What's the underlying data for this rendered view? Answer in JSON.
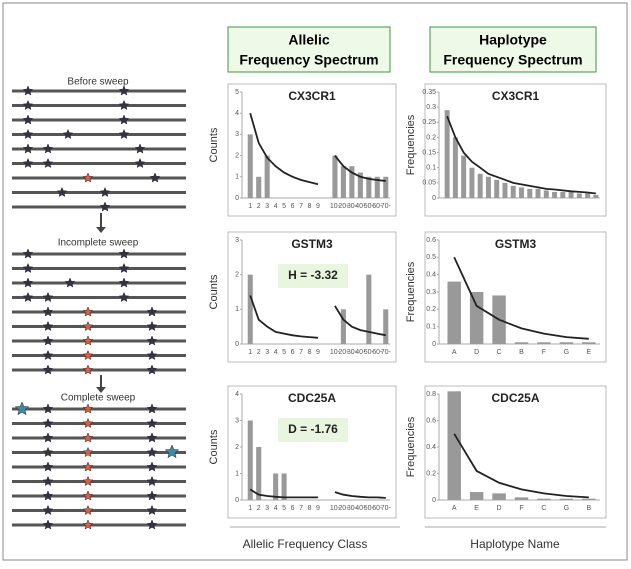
{
  "panel_headers": [
    [
      "Allelic",
      "Frequency Spectrum"
    ],
    [
      "Haplotype",
      "Frequency Spectrum"
    ]
  ],
  "diagram": {
    "labels": [
      "Before sweep",
      "Incomplete sweep",
      "Complete sweep"
    ]
  },
  "x_axis_titles": [
    "Allelic Frequency Class",
    "Haplotype Name"
  ],
  "chart_data": [
    {
      "type": "bar",
      "title": "CX3CR1",
      "ylabel": "Counts",
      "categories": [
        "1",
        "2",
        "3",
        "4",
        "5",
        "6",
        "7",
        "8",
        "9",
        null,
        "10-",
        "20-",
        "30-",
        "40-",
        "50-",
        "60-",
        "70-"
      ],
      "values": [
        3,
        1,
        2,
        0,
        0,
        0,
        0,
        0,
        0,
        null,
        2,
        1.5,
        1.5,
        1.2,
        1,
        1,
        1
      ],
      "line": [
        4,
        2.6,
        1.9,
        1.5,
        1.2,
        1,
        0.85,
        0.75,
        0.65,
        null,
        2,
        1.5,
        1.2,
        1,
        0.9,
        0.85,
        0.8
      ],
      "color": "#999999",
      "line_color": "#222222",
      "ylim": [
        0,
        5
      ],
      "yticks": [
        0,
        1,
        2,
        3,
        4,
        5
      ]
    },
    {
      "type": "bar",
      "title": "GSTM3",
      "ylabel": "Counts",
      "annotation": "H = -3.32",
      "categories": [
        "1",
        "2",
        "3",
        "4",
        "5",
        "6",
        "7",
        "8",
        "9",
        null,
        "10-",
        "20-",
        "30-",
        "40-",
        "50-",
        "60-",
        "70-"
      ],
      "values": [
        2,
        0,
        0,
        0,
        0,
        0,
        0,
        0,
        0,
        null,
        0,
        1,
        0,
        0,
        2,
        0,
        1
      ],
      "line": [
        1.4,
        0.7,
        0.5,
        0.35,
        0.3,
        0.25,
        0.22,
        0.2,
        0.18,
        null,
        1.1,
        0.7,
        0.5,
        0.4,
        0.35,
        0.3,
        0.25
      ],
      "color": "#999999",
      "line_color": "#222222",
      "ylim": [
        0,
        3
      ],
      "yticks": [
        0,
        1,
        2,
        3
      ]
    },
    {
      "type": "bar",
      "title": "CDC25A",
      "ylabel": "Counts",
      "annotation": "D = -1.76",
      "categories": [
        "1",
        "2",
        "3",
        "4",
        "5",
        "6",
        "7",
        "8",
        "9",
        null,
        "10-",
        "20-",
        "30-",
        "40-",
        "50-",
        "60-",
        "70-"
      ],
      "values": [
        3,
        2,
        0,
        1,
        1,
        0,
        0,
        0,
        0,
        null,
        0,
        0,
        0,
        0,
        0,
        0,
        0
      ],
      "line": [
        0.4,
        0.2,
        0.15,
        0.12,
        0.1,
        0.1,
        0.1,
        0.1,
        0.1,
        null,
        0.3,
        0.2,
        0.15,
        0.12,
        0.1,
        0.1,
        0.08
      ],
      "color": "#999999",
      "line_color": "#222222",
      "ylim": [
        0,
        4
      ],
      "yticks": [
        0,
        1,
        2,
        3,
        4
      ]
    },
    {
      "type": "bar",
      "title": "CX3CR1",
      "ylabel": "Frequencies",
      "categories": [
        null,
        null,
        null,
        null,
        null,
        null,
        null,
        null,
        null,
        null,
        null,
        null,
        null,
        null,
        null,
        null,
        null,
        null,
        null
      ],
      "values": [
        0.29,
        0.2,
        0.14,
        0.1,
        0.08,
        0.07,
        0.06,
        0.05,
        0.04,
        0.035,
        0.03,
        0.03,
        0.025,
        0.02,
        0.02,
        0.02,
        0.015,
        0.015,
        0.01
      ],
      "line": [
        0.27,
        0.2,
        0.15,
        0.12,
        0.1,
        0.08,
        0.07,
        0.06,
        0.05,
        0.045,
        0.04,
        0.035,
        0.03,
        0.028,
        0.025,
        0.022,
        0.02,
        0.018,
        0.015
      ],
      "color": "#999999",
      "line_color": "#222222",
      "ylim": [
        0,
        0.35
      ],
      "yticks": [
        0,
        0.05,
        0.1,
        0.15,
        0.2,
        0.25,
        0.3,
        0.35
      ]
    },
    {
      "type": "bar",
      "title": "GSTM3",
      "ylabel": "Frequencies",
      "categories": [
        "A",
        "D",
        "C",
        "B",
        "F",
        "G",
        "E"
      ],
      "values": [
        0.36,
        0.3,
        0.28,
        0.01,
        0.01,
        0.01,
        0.01
      ],
      "line": [
        0.5,
        0.22,
        0.14,
        0.09,
        0.06,
        0.04,
        0.03
      ],
      "color": "#999999",
      "line_color": "#222222",
      "ylim": [
        0,
        0.6
      ],
      "yticks": [
        0,
        0.1,
        0.2,
        0.3,
        0.4,
        0.5,
        0.6
      ]
    },
    {
      "type": "bar",
      "title": "CDC25A",
      "ylabel": "Frequencies",
      "categories": [
        "A",
        "E",
        "D",
        "F",
        "C",
        "G",
        "B"
      ],
      "values": [
        0.82,
        0.06,
        0.05,
        0.02,
        0.01,
        0.01,
        0.01
      ],
      "line": [
        0.5,
        0.22,
        0.13,
        0.08,
        0.05,
        0.03,
        0.02
      ],
      "color": "#999999",
      "line_color": "#222222",
      "ylim": [
        0,
        0.8
      ],
      "yticks": [
        0,
        0.2,
        0.4,
        0.6,
        0.8
      ]
    }
  ]
}
